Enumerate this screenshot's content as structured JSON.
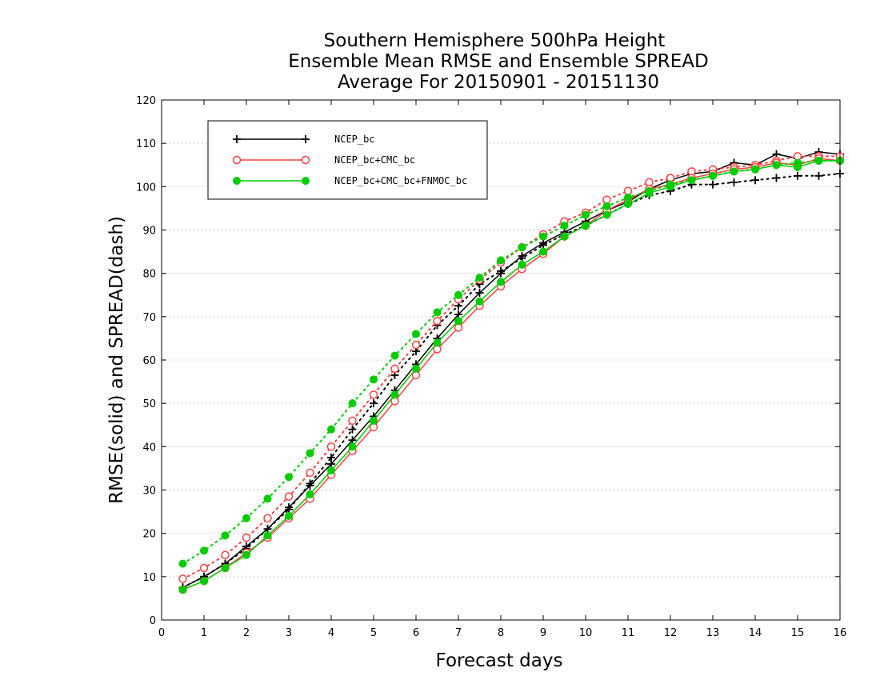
{
  "chart_data": {
    "type": "line",
    "title_lines": [
      "Southern Hemisphere 500hPa Height",
      "Ensemble Mean RMSE and Ensemble SPREAD",
      "Average For 20150901 - 20151130"
    ],
    "xlabel": "Forecast days",
    "ylabel": "RMSE(solid) and SPREAD(dash)",
    "xlim": [
      0,
      16
    ],
    "ylim": [
      0,
      120
    ],
    "x_ticks": [
      0,
      1,
      2,
      3,
      4,
      5,
      6,
      7,
      8,
      9,
      10,
      11,
      12,
      13,
      14,
      15,
      16
    ],
    "y_ticks": [
      0,
      10,
      20,
      30,
      40,
      50,
      60,
      70,
      80,
      90,
      100,
      110,
      120
    ],
    "grid": "horizontal dotted",
    "legend_position": "top-left",
    "x": [
      0.5,
      1,
      1.5,
      2,
      2.5,
      3,
      3.5,
      4,
      4.5,
      5,
      5.5,
      6,
      6.5,
      7,
      7.5,
      8,
      8.5,
      9,
      9.5,
      10,
      10.5,
      11,
      11.5,
      12,
      12.5,
      13,
      13.5,
      14,
      14.5,
      15,
      15.5,
      16
    ],
    "series": [
      {
        "name": "NCEP_bc",
        "color": "#000000",
        "marker": "plus",
        "rmse": [
          7.5,
          10,
          13,
          17,
          21,
          26,
          31,
          36,
          41.5,
          47,
          53,
          59,
          65,
          70.5,
          75.5,
          80,
          84,
          87,
          89.5,
          92,
          94.5,
          96.5,
          99.5,
          101.5,
          103,
          103.5,
          105.5,
          105,
          107.5,
          106.5,
          108,
          107.5
        ],
        "spread": [
          7.5,
          10,
          13,
          16.5,
          21,
          25.5,
          31.5,
          37.5,
          44,
          50,
          56.5,
          62,
          68,
          72.5,
          77.5,
          80.5,
          83.5,
          86.5,
          89,
          91,
          93.5,
          96,
          98,
          99,
          100.5,
          100.5,
          101,
          101.5,
          102,
          102.5,
          102.5,
          103
        ]
      },
      {
        "name": "NCEP_bc+CMC_bc",
        "color": "#ff4040",
        "marker": "open-circle",
        "rmse": [
          7,
          9,
          12,
          15.5,
          19,
          23.5,
          28,
          33.5,
          39,
          44.5,
          50.5,
          56.5,
          62.5,
          67.5,
          72.5,
          77,
          81,
          84.5,
          88.5,
          91,
          94.5,
          97,
          99.5,
          100.5,
          102,
          103,
          104,
          104.5,
          105.5,
          105,
          106.5,
          106
        ],
        "spread": [
          9.5,
          12,
          15,
          19,
          23.5,
          28.5,
          34,
          40,
          46,
          52,
          58,
          63.5,
          69,
          74,
          78.5,
          82.5,
          86,
          89,
          92,
          94,
          97,
          99,
          101,
          102,
          103.5,
          104,
          104.5,
          105,
          106,
          107,
          107,
          107
        ]
      },
      {
        "name": "NCEP_bc+CMC_bc+FNMOC_bc",
        "color": "#00cc00",
        "marker": "filled-circle",
        "rmse": [
          7,
          9,
          12,
          15,
          19.5,
          24,
          29,
          34.5,
          40,
          46,
          52,
          58,
          64,
          69,
          73.5,
          78,
          82,
          85,
          88.5,
          91,
          93.5,
          96,
          98.5,
          100,
          101.5,
          102.5,
          103.5,
          104,
          105,
          104.5,
          106,
          106
        ],
        "spread": [
          13,
          16,
          19.5,
          23.5,
          28,
          33,
          38.5,
          44,
          50,
          55.5,
          61,
          66,
          71,
          75,
          79,
          83,
          86,
          88.5,
          91,
          93.5,
          95.5,
          97.5,
          99,
          100.5,
          101.5,
          102.5,
          103.5,
          104,
          105,
          105.5,
          106,
          106
        ]
      }
    ]
  }
}
